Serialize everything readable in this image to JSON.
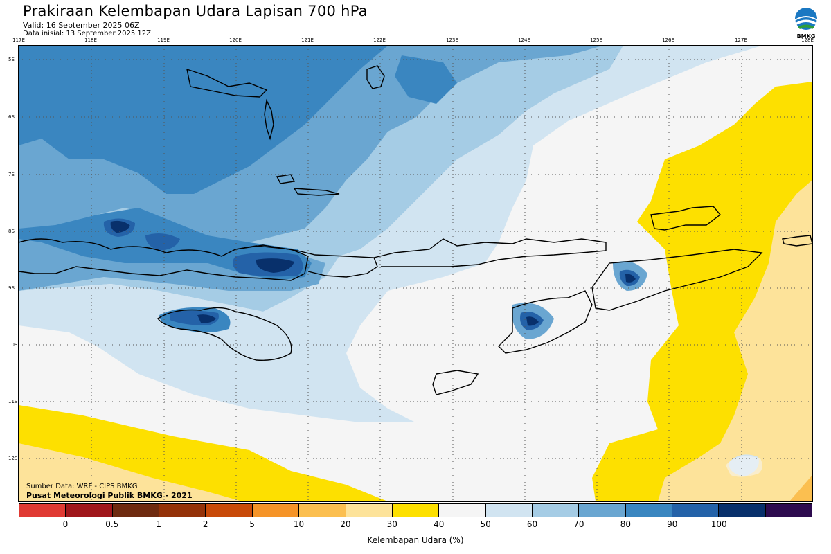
{
  "title": "Prakiraan Kelembapan Udara Lapisan 700 hPa",
  "valid": "Valid: 16 September 2025 06Z",
  "initial": "Data inisial: 13 September 2025 12Z",
  "logo_text": "BMKG",
  "source": "Sumber Data: WRF - CIPS BMKG",
  "org": "Pusat Meteorologi Publik BMKG - 2021",
  "legend_title": "Kelembapan Udara (%)",
  "legend_ticks": [
    "0",
    "0.5",
    "1",
    "2",
    "5",
    "10",
    "20",
    "30",
    "40",
    "50",
    "60",
    "70",
    "80",
    "90",
    "100"
  ],
  "legend_colors": [
    "#e03a33",
    "#a0161b",
    "#6e2a10",
    "#943208",
    "#c84a08",
    "#f59428",
    "#fbbf50",
    "#fde39a",
    "#fde000",
    "#f5f5f5",
    "#d1e4f1",
    "#a5cce5",
    "#6aa6d1",
    "#3a86c0",
    "#2462a8",
    "#08306b",
    "#2d0b4f"
  ],
  "lon_labels": [
    "117E",
    "118E",
    "119E",
    "120E",
    "121E",
    "122E",
    "123E",
    "124E",
    "125E",
    "126E",
    "127E",
    "128E"
  ],
  "lat_labels": [
    "5S",
    "6S",
    "7S",
    "8S",
    "9S",
    "10S",
    "11S",
    "12S"
  ]
}
